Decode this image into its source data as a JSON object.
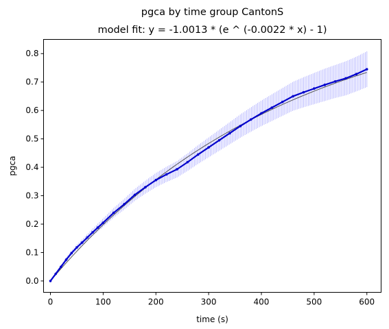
{
  "chart_data": {
    "type": "line",
    "title": "pgca by time group CantonS",
    "subtitle": "model fit: y = -1.0013 * (e ^ (-0.0022 * x) - 1)",
    "xlabel": "time (s)",
    "ylabel": "pgca",
    "xlim": [
      -13,
      627
    ],
    "ylim": [
      -0.04,
      0.85
    ],
    "xticks": [
      0,
      100,
      200,
      300,
      400,
      500,
      600
    ],
    "yticks": [
      0.0,
      0.1,
      0.2,
      0.3,
      0.4,
      0.5,
      0.6,
      0.7,
      0.8
    ],
    "xtick_labels": [
      "0",
      "100",
      "200",
      "300",
      "400",
      "500",
      "600"
    ],
    "ytick_labels": [
      "0.0",
      "0.1",
      "0.2",
      "0.3",
      "0.4",
      "0.5",
      "0.6",
      "0.7",
      "0.8"
    ],
    "grid": false,
    "colors": {
      "data": "#0000cc",
      "errorbar": "#b3b3ff",
      "fit": "#555555"
    },
    "model": {
      "a": -1.0013,
      "b": -0.0022
    },
    "series": [
      {
        "x": [
          0,
          10,
          20,
          30,
          40,
          50,
          60,
          70,
          80,
          90,
          100,
          120,
          140,
          160,
          180,
          200,
          220,
          240,
          260,
          280,
          300,
          320,
          340,
          360,
          380,
          400,
          420,
          440,
          460,
          480,
          500,
          520,
          540,
          560,
          580,
          600
        ],
        "y": [
          0.0,
          0.025,
          0.05,
          0.075,
          0.098,
          0.118,
          0.135,
          0.153,
          0.171,
          0.188,
          0.205,
          0.24,
          0.27,
          0.303,
          0.33,
          0.355,
          0.375,
          0.393,
          0.418,
          0.445,
          0.47,
          0.495,
          0.52,
          0.545,
          0.568,
          0.59,
          0.61,
          0.63,
          0.65,
          0.664,
          0.677,
          0.69,
          0.702,
          0.713,
          0.728,
          0.745
        ],
        "err": [
          0.0,
          0.004,
          0.006,
          0.008,
          0.009,
          0.01,
          0.011,
          0.012,
          0.013,
          0.014,
          0.015,
          0.017,
          0.019,
          0.021,
          0.023,
          0.025,
          0.027,
          0.029,
          0.031,
          0.033,
          0.035,
          0.037,
          0.039,
          0.041,
          0.043,
          0.045,
          0.047,
          0.049,
          0.051,
          0.053,
          0.055,
          0.057,
          0.058,
          0.06,
          0.061,
          0.063
        ]
      }
    ]
  }
}
